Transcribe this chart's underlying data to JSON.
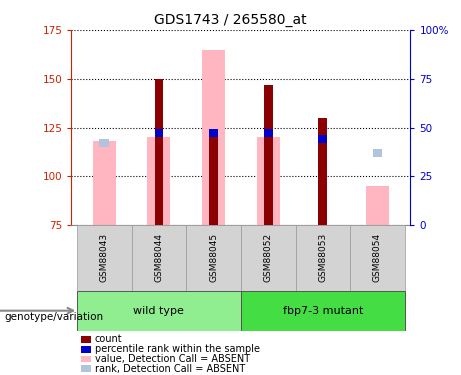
{
  "title": "GDS1743 / 265580_at",
  "samples": [
    "GSM88043",
    "GSM88044",
    "GSM88045",
    "GSM88052",
    "GSM88053",
    "GSM88054"
  ],
  "group_spans": [
    {
      "name": "wild type",
      "start": 0,
      "end": 3,
      "color": "#90EE90"
    },
    {
      "name": "fbp7-3 mutant",
      "start": 3,
      "end": 6,
      "color": "#44DD44"
    }
  ],
  "ylim_left": [
    75,
    175
  ],
  "ylim_right": [
    0,
    100
  ],
  "yticks_left": [
    75,
    100,
    125,
    150,
    175
  ],
  "yticks_right": [
    0,
    25,
    50,
    75,
    100
  ],
  "ytick_labels_right": [
    "0",
    "25",
    "50",
    "75",
    "100%"
  ],
  "bar_base": 75,
  "bar_data": {
    "GSM88043": {
      "value_absent": 118,
      "rank_absent": 115,
      "count": null,
      "percentile": null
    },
    "GSM88044": {
      "value_absent": 120,
      "rank_absent": null,
      "count": 150,
      "percentile": 120
    },
    "GSM88045": {
      "value_absent": 165,
      "rank_absent": null,
      "count": 120,
      "percentile": 120
    },
    "GSM88052": {
      "value_absent": 120,
      "rank_absent": null,
      "count": 147,
      "percentile": 120
    },
    "GSM88053": {
      "value_absent": null,
      "rank_absent": null,
      "count": 130,
      "percentile": 117
    },
    "GSM88054": {
      "value_absent": 95,
      "rank_absent": 110,
      "count": null,
      "percentile": null
    }
  },
  "count_color": "#8B0000",
  "percentile_color": "#0000CC",
  "value_absent_color": "#FFB6C1",
  "rank_absent_color": "#B0C4DE",
  "left_axis_color": "#CC2200",
  "right_axis_color": "#0000CC",
  "label_bg_color": "#D3D3D3",
  "legend": [
    {
      "label": "count",
      "color": "#8B0000"
    },
    {
      "label": "percentile rank within the sample",
      "color": "#0000CC"
    },
    {
      "label": "value, Detection Call = ABSENT",
      "color": "#FFB6C1"
    },
    {
      "label": "rank, Detection Call = ABSENT",
      "color": "#B0C4DE"
    }
  ]
}
